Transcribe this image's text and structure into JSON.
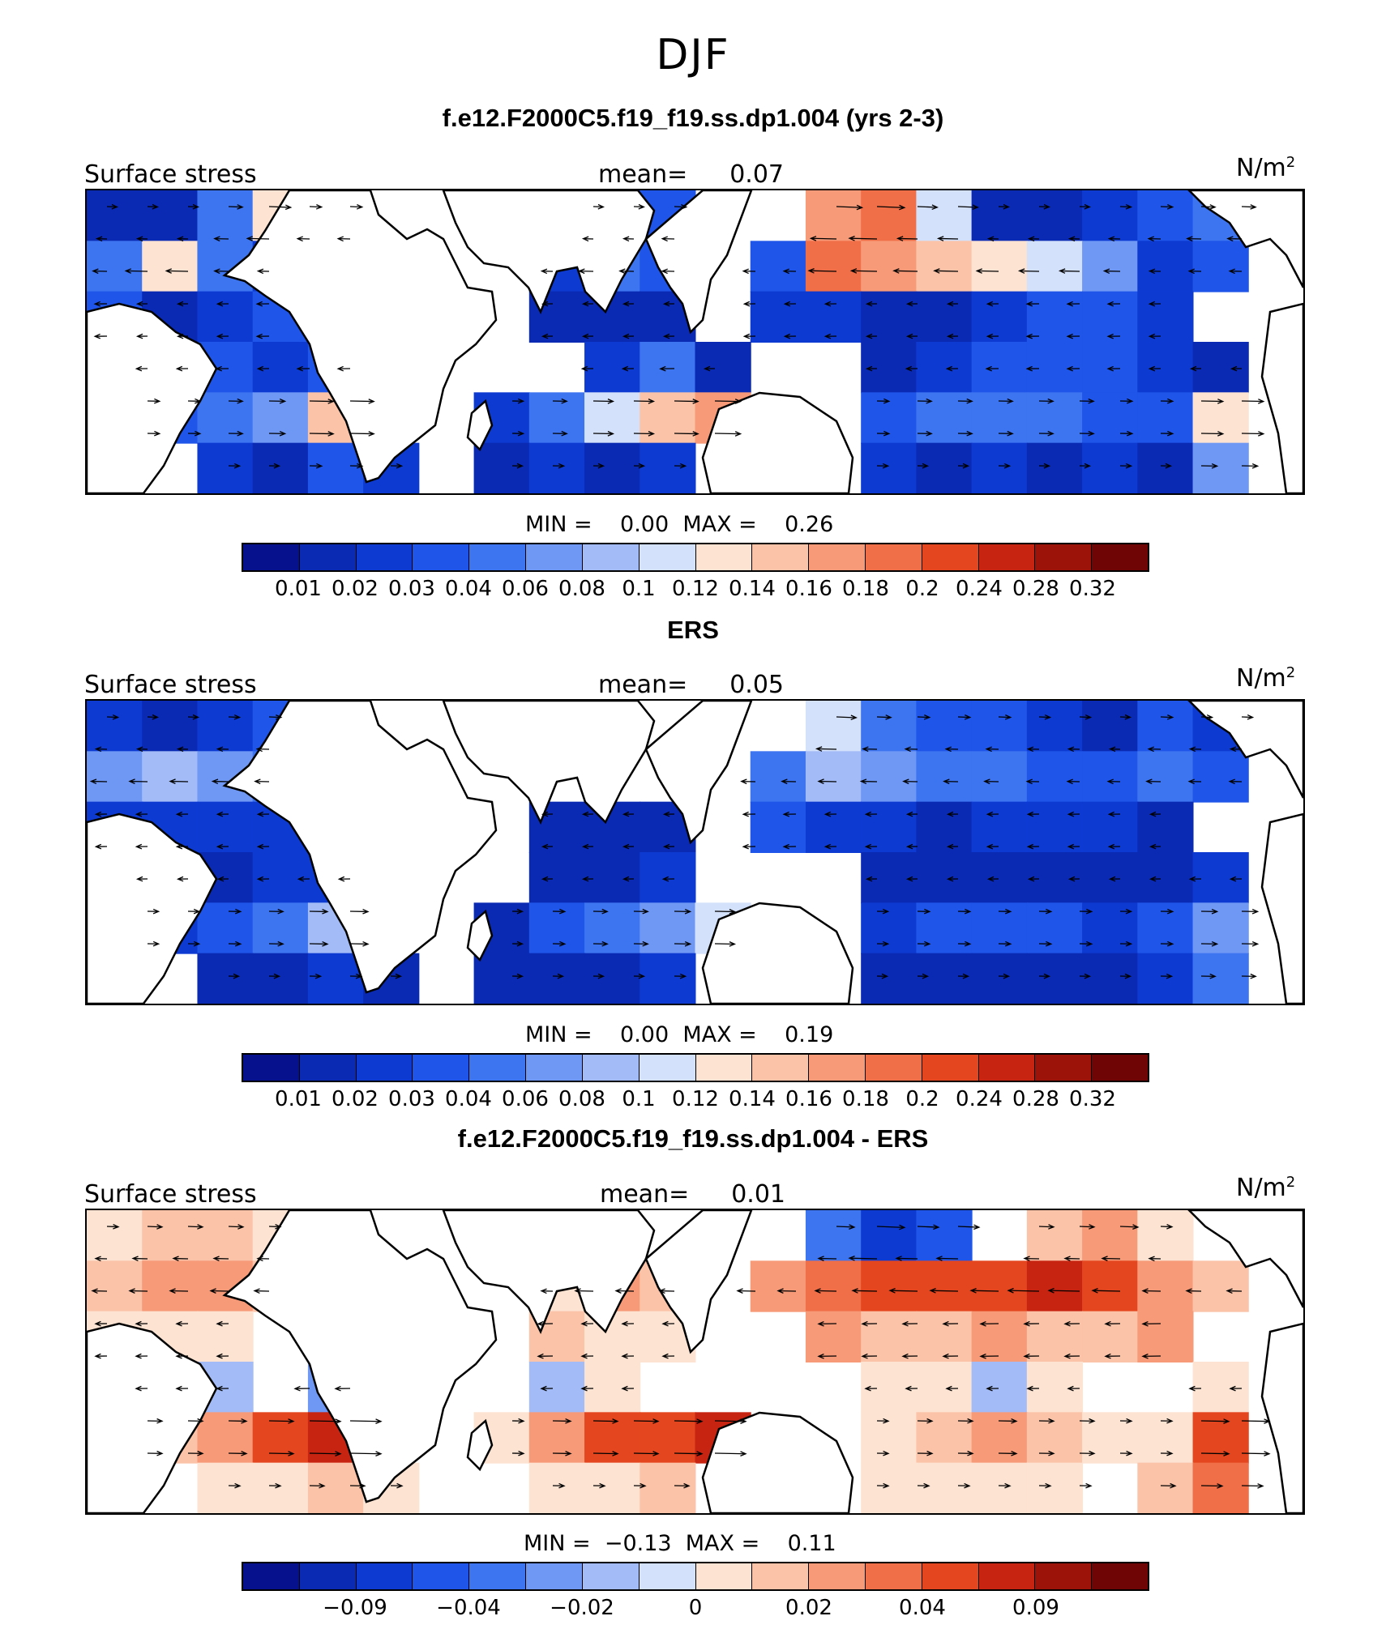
{
  "figure_title": "DJF",
  "colors": {
    "palette": [
      "#06128d",
      "#0a2ab4",
      "#0d3bd2",
      "#1f55e8",
      "#3d74f0",
      "#6f98f5",
      "#a3bcf7",
      "#d4e1fa",
      "#fde3d2",
      "#fbc3a8",
      "#f79a78",
      "#f16f48",
      "#e4471f",
      "#c82412",
      "#9c130a",
      "#700505"
    ]
  },
  "panels": [
    {
      "title": "f.e12.F2000C5.f19_f19.ss.dp1.004 (yrs 2-3)",
      "variable": "Surface stress",
      "mean_label": "mean=",
      "mean_value": "0.07",
      "units": "N/m",
      "units_sup": "2",
      "min_label": "MIN =",
      "min_value": "0.00",
      "max_label": "MAX =",
      "max_value": "0.26",
      "colorbar_ticks": [
        "0.01",
        "0.02",
        "0.03",
        "0.04",
        "0.06",
        "0.08",
        "0.1",
        "0.12",
        "0.14",
        "0.16",
        "0.18",
        "0.2",
        "0.24",
        "0.28",
        "0.32"
      ]
    },
    {
      "title": "ERS",
      "variable": "Surface stress",
      "mean_label": "mean=",
      "mean_value": "0.05",
      "units": "N/m",
      "units_sup": "2",
      "min_label": "MIN =",
      "min_value": "0.00",
      "max_label": "MAX =",
      "max_value": "0.19",
      "colorbar_ticks": [
        "0.01",
        "0.02",
        "0.03",
        "0.04",
        "0.06",
        "0.08",
        "0.1",
        "0.12",
        "0.14",
        "0.16",
        "0.18",
        "0.2",
        "0.24",
        "0.28",
        "0.32"
      ]
    },
    {
      "title": "f.e12.F2000C5.f19_f19.ss.dp1.004 - ERS",
      "variable": "Surface stress",
      "mean_label": "mean=",
      "mean_value": "0.01",
      "units": "N/m",
      "units_sup": "2",
      "min_label": "MIN =",
      "min_value": "−0.13",
      "max_label": "MAX =",
      "max_value": "0.11",
      "colorbar_ticks": [
        "",
        "−0.09",
        "",
        "−0.04",
        "",
        "−0.02",
        "",
        "0",
        "",
        "0.02",
        "",
        "0.04",
        "",
        "0.09",
        ""
      ]
    }
  ],
  "chart_data": [
    {
      "type": "heatmap",
      "title": "f.e12.F2000C5.f19_f19.ss.dp1.004 (yrs 2-3)",
      "xlabel": "",
      "ylabel": "",
      "mean": 0.07,
      "min": 0.0,
      "max": 0.26,
      "colorbar_levels": [
        0.01,
        0.02,
        0.03,
        0.04,
        0.06,
        0.08,
        0.1,
        0.12,
        0.14,
        0.16,
        0.18,
        0.2,
        0.24,
        0.28,
        0.32
      ],
      "field": [
        [
          0.02,
          0.02,
          0.06,
          0.14,
          0.04,
          0.0,
          0.0,
          0.0,
          0.0,
          0.02,
          0.04,
          0.0,
          0.0,
          0.18,
          0.2,
          0.12,
          0.02,
          0.02,
          0.03,
          0.04,
          0.06,
          0.0
        ],
        [
          0.06,
          0.14,
          0.06,
          0.03,
          0.0,
          0.0,
          0.0,
          0.0,
          0.03,
          0.06,
          0.04,
          0.0,
          0.04,
          0.2,
          0.18,
          0.16,
          0.14,
          0.12,
          0.08,
          0.03,
          0.04,
          0.0
        ],
        [
          0.04,
          0.02,
          0.03,
          0.04,
          0.0,
          0.0,
          0.0,
          0.0,
          0.02,
          0.02,
          0.02,
          0.0,
          0.03,
          0.03,
          0.02,
          0.02,
          0.03,
          0.04,
          0.04,
          0.03,
          0.0,
          0.0
        ],
        [
          0.0,
          0.03,
          0.04,
          0.03,
          0.04,
          0.0,
          0.0,
          0.0,
          0.0,
          0.03,
          0.06,
          0.02,
          0.0,
          0.0,
          0.02,
          0.03,
          0.04,
          0.04,
          0.04,
          0.03,
          0.02,
          0.0
        ],
        [
          0.0,
          0.04,
          0.06,
          0.08,
          0.16,
          0.0,
          0.0,
          0.03,
          0.06,
          0.12,
          0.16,
          0.18,
          0.0,
          0.0,
          0.04,
          0.06,
          0.06,
          0.06,
          0.04,
          0.04,
          0.14,
          0.0
        ],
        [
          0.0,
          0.0,
          0.03,
          0.02,
          0.04,
          0.03,
          0.0,
          0.02,
          0.03,
          0.02,
          0.03,
          0.0,
          0.0,
          0.0,
          0.03,
          0.02,
          0.03,
          0.02,
          0.03,
          0.02,
          0.08,
          0.0
        ]
      ]
    },
    {
      "type": "heatmap",
      "title": "ERS",
      "xlabel": "",
      "ylabel": "",
      "mean": 0.05,
      "min": 0.0,
      "max": 0.19,
      "colorbar_levels": [
        0.01,
        0.02,
        0.03,
        0.04,
        0.06,
        0.08,
        0.1,
        0.12,
        0.14,
        0.16,
        0.18,
        0.2,
        0.24,
        0.28,
        0.32
      ],
      "field": [
        [
          0.03,
          0.02,
          0.03,
          0.04,
          0.0,
          0.0,
          0.0,
          0.0,
          0.0,
          0.0,
          0.0,
          0.0,
          0.0,
          0.12,
          0.06,
          0.04,
          0.04,
          0.03,
          0.02,
          0.04,
          0.03,
          0.0
        ],
        [
          0.08,
          0.1,
          0.08,
          0.06,
          0.0,
          0.0,
          0.0,
          0.0,
          0.0,
          0.0,
          0.0,
          0.0,
          0.06,
          0.1,
          0.08,
          0.06,
          0.06,
          0.04,
          0.04,
          0.06,
          0.04,
          0.0
        ],
        [
          0.03,
          0.03,
          0.03,
          0.03,
          0.0,
          0.0,
          0.0,
          0.0,
          0.02,
          0.02,
          0.02,
          0.0,
          0.04,
          0.03,
          0.03,
          0.02,
          0.03,
          0.03,
          0.03,
          0.02,
          0.0,
          0.0
        ],
        [
          0.0,
          0.02,
          0.02,
          0.03,
          0.03,
          0.0,
          0.0,
          0.0,
          0.02,
          0.02,
          0.03,
          0.0,
          0.0,
          0.0,
          0.02,
          0.02,
          0.02,
          0.02,
          0.02,
          0.02,
          0.03,
          0.0
        ],
        [
          0.0,
          0.03,
          0.04,
          0.06,
          0.1,
          0.0,
          0.0,
          0.02,
          0.04,
          0.06,
          0.08,
          0.12,
          0.0,
          0.0,
          0.03,
          0.04,
          0.04,
          0.04,
          0.03,
          0.04,
          0.08,
          0.0
        ],
        [
          0.0,
          0.0,
          0.02,
          0.02,
          0.03,
          0.02,
          0.0,
          0.02,
          0.02,
          0.02,
          0.03,
          0.0,
          0.0,
          0.0,
          0.02,
          0.02,
          0.02,
          0.02,
          0.02,
          0.03,
          0.06,
          0.0
        ]
      ]
    },
    {
      "type": "heatmap",
      "title": "f.e12.F2000C5.f19_f19.ss.dp1.004 - ERS",
      "xlabel": "",
      "ylabel": "",
      "mean": 0.01,
      "min": -0.13,
      "max": 0.11,
      "colorbar_levels": [
        -0.13,
        -0.09,
        -0.06,
        -0.04,
        -0.03,
        -0.02,
        -0.01,
        0,
        0.01,
        0.02,
        0.03,
        0.04,
        0.06,
        0.09,
        0.13
      ],
      "field": [
        [
          0.01,
          0.02,
          0.02,
          0.01,
          0.0,
          0.0,
          0.0,
          0.0,
          0.0,
          0.0,
          0.0,
          0.0,
          0.0,
          -0.03,
          -0.06,
          -0.04,
          0.0,
          0.02,
          0.03,
          0.01,
          0.0,
          0.0
        ],
        [
          0.02,
          0.03,
          0.03,
          0.02,
          0.0,
          0.0,
          0.0,
          0.0,
          0.01,
          0.03,
          0.02,
          0.0,
          0.03,
          0.04,
          0.05,
          0.06,
          0.06,
          0.07,
          0.06,
          0.03,
          0.02,
          0.0
        ],
        [
          0.01,
          0.01,
          0.01,
          0.0,
          0.0,
          0.0,
          0.0,
          0.0,
          0.02,
          0.01,
          0.01,
          0.0,
          0.0,
          0.03,
          0.02,
          0.02,
          0.03,
          0.02,
          0.02,
          0.03,
          0.0,
          0.0
        ],
        [
          0.0,
          0.01,
          -0.01,
          0.0,
          -0.02,
          0.0,
          0.0,
          0.0,
          -0.01,
          0.01,
          0.0,
          0.0,
          0.0,
          0.0,
          0.01,
          0.01,
          -0.01,
          0.01,
          0.0,
          0.0,
          0.01,
          0.0
        ],
        [
          0.0,
          0.02,
          0.03,
          0.05,
          0.07,
          0.0,
          0.0,
          0.01,
          0.03,
          0.05,
          0.06,
          0.07,
          0.0,
          0.0,
          0.01,
          0.02,
          0.03,
          0.02,
          0.01,
          0.01,
          0.06,
          0.0
        ],
        [
          0.0,
          0.0,
          0.01,
          0.01,
          0.02,
          0.01,
          0.0,
          0.0,
          0.01,
          0.01,
          0.02,
          0.0,
          0.0,
          0.0,
          0.01,
          0.01,
          0.01,
          0.01,
          0.0,
          0.02,
          0.04,
          0.0
        ]
      ]
    }
  ]
}
